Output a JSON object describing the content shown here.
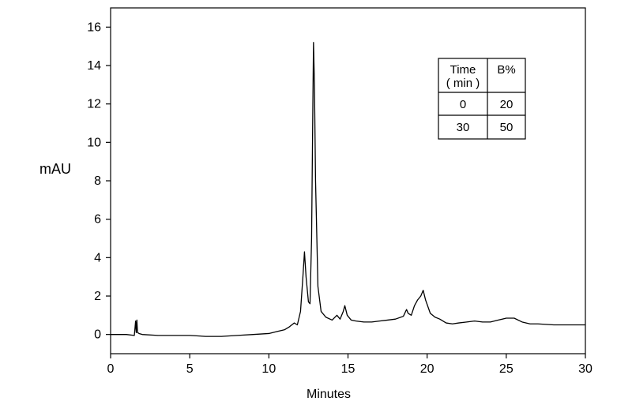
{
  "chart_data": {
    "type": "line",
    "title": "",
    "xlabel": "Minutes",
    "ylabel": "mAU",
    "xlim": [
      0,
      30
    ],
    "ylim": [
      -1,
      17
    ],
    "xticks": [
      "0",
      "5",
      "10",
      "15",
      "20",
      "25",
      "30"
    ],
    "yticks": [
      "0",
      "2",
      "4",
      "6",
      "8",
      "10",
      "12",
      "14",
      "16"
    ],
    "grid": false,
    "legend": "none",
    "line_color": "#000000",
    "series": [
      {
        "x": [
          0,
          1,
          1.5,
          1.58,
          1.62,
          1.66,
          1.7,
          1.8,
          2,
          3,
          4,
          5,
          6,
          7,
          8,
          9,
          10,
          10.5,
          11,
          11.3,
          11.6,
          11.8,
          12.0,
          12.15,
          12.25,
          12.35,
          12.5,
          12.6,
          12.7,
          12.78,
          12.82,
          12.88,
          12.95,
          13.1,
          13.3,
          13.6,
          14.0,
          14.3,
          14.5,
          14.7,
          14.8,
          14.95,
          15.2,
          15.5,
          16,
          16.5,
          17,
          17.5,
          18,
          18.5,
          18.7,
          18.8,
          19.0,
          19.2,
          19.4,
          19.6,
          19.75,
          19.9,
          20.2,
          20.5,
          20.8,
          21.2,
          21.6,
          22,
          22.5,
          23,
          23.5,
          24,
          24.5,
          25,
          25.5,
          26,
          26.5,
          27,
          28,
          29,
          30
        ],
        "y": [
          0,
          0.0,
          -0.05,
          0.7,
          0.1,
          0.75,
          0.1,
          0.05,
          0.0,
          -0.05,
          -0.05,
          -0.05,
          -0.1,
          -0.1,
          -0.05,
          0.0,
          0.05,
          0.15,
          0.25,
          0.4,
          0.6,
          0.5,
          1.2,
          3.0,
          4.3,
          3.0,
          1.7,
          1.6,
          5.0,
          12.0,
          15.2,
          13.0,
          8.0,
          2.5,
          1.2,
          0.9,
          0.75,
          1.0,
          0.8,
          1.2,
          1.5,
          1.0,
          0.75,
          0.7,
          0.65,
          0.65,
          0.7,
          0.75,
          0.8,
          0.95,
          1.3,
          1.1,
          1.0,
          1.5,
          1.8,
          2.0,
          2.3,
          1.8,
          1.1,
          0.9,
          0.8,
          0.6,
          0.55,
          0.6,
          0.65,
          0.7,
          0.65,
          0.65,
          0.75,
          0.85,
          0.85,
          0.65,
          0.55,
          0.55,
          0.5,
          0.5,
          0.5
        ]
      }
    ],
    "gradient_table": {
      "headers": [
        [
          "Time",
          "( min )"
        ],
        [
          "B%"
        ]
      ],
      "rows": [
        [
          "0",
          "20"
        ],
        [
          "30",
          "50"
        ]
      ]
    }
  }
}
